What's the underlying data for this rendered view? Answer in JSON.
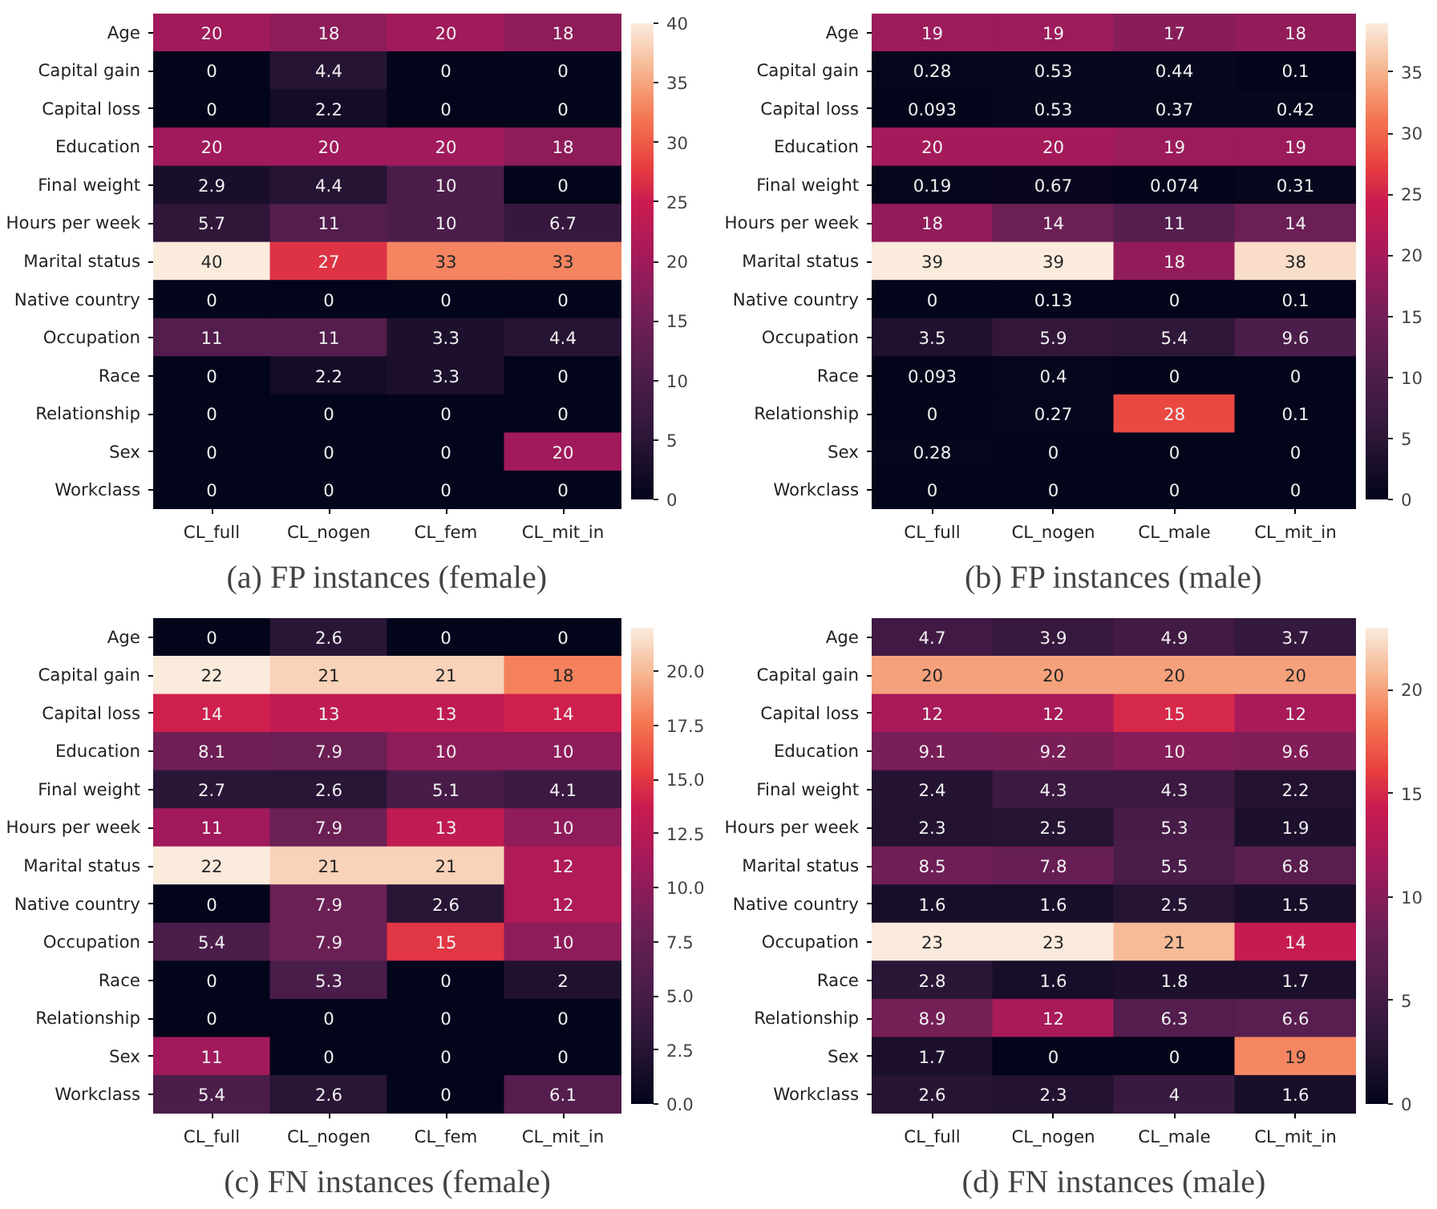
{
  "chart_data": [
    {
      "type": "heatmap",
      "title": "(a) FP instances (female)",
      "categories": [
        "CL_full",
        "CL_nogen",
        "CL_fem",
        "CL_mit_in"
      ],
      "y_categories": [
        "Age",
        "Capital gain",
        "Capital loss",
        "Education",
        "Final weight",
        "Hours per week",
        "Marital status",
        "Native country",
        "Occupation",
        "Race",
        "Relationship",
        "Sex",
        "Workclass"
      ],
      "clim": [
        0,
        40
      ],
      "cticks": [
        0,
        5,
        10,
        15,
        20,
        25,
        30,
        35,
        40
      ],
      "data_labels": true,
      "cells": [
        [
          20,
          18,
          20,
          18
        ],
        [
          0,
          4.4,
          0,
          0
        ],
        [
          0,
          2.2,
          0,
          0
        ],
        [
          20,
          20,
          20,
          18
        ],
        [
          2.9,
          4.4,
          10,
          0
        ],
        [
          5.7,
          11,
          10,
          6.7
        ],
        [
          40,
          27,
          33,
          33
        ],
        [
          0,
          0,
          0,
          0
        ],
        [
          11,
          11,
          3.3,
          4.4
        ],
        [
          0,
          2.2,
          3.3,
          0
        ],
        [
          0,
          0,
          0,
          0
        ],
        [
          0,
          0,
          0,
          20
        ],
        [
          0,
          0,
          0,
          0
        ]
      ]
    },
    {
      "type": "heatmap",
      "title": "(b) FP instances (male)",
      "categories": [
        "CL_full",
        "CL_nogen",
        "CL_male",
        "CL_mit_in"
      ],
      "y_categories": [
        "Age",
        "Capital gain",
        "Capital loss",
        "Education",
        "Final weight",
        "Hours per week",
        "Marital status",
        "Native country",
        "Occupation",
        "Race",
        "Relationship",
        "Sex",
        "Workclass"
      ],
      "clim": [
        0,
        39
      ],
      "cticks": [
        0,
        5,
        10,
        15,
        20,
        25,
        30,
        35
      ],
      "data_labels": true,
      "cells": [
        [
          19,
          19,
          17,
          18
        ],
        [
          0.28,
          0.53,
          0.44,
          0.1
        ],
        [
          0.093,
          0.53,
          0.37,
          0.42
        ],
        [
          20,
          20,
          19,
          19
        ],
        [
          0.19,
          0.67,
          0.074,
          0.31
        ],
        [
          18,
          14,
          11,
          14
        ],
        [
          39,
          39,
          18,
          38
        ],
        [
          0,
          0.13,
          0,
          0.1
        ],
        [
          3.5,
          5.9,
          5.4,
          9.6
        ],
        [
          0.093,
          0.4,
          0,
          0
        ],
        [
          0,
          0.27,
          28,
          0.1
        ],
        [
          0.28,
          0,
          0,
          0
        ],
        [
          0,
          0,
          0,
          0
        ]
      ]
    },
    {
      "type": "heatmap",
      "title": "(c) FN instances (female)",
      "categories": [
        "CL_full",
        "CL_nogen",
        "CL_fem",
        "CL_mit_in"
      ],
      "y_categories": [
        "Age",
        "Capital gain",
        "Capital loss",
        "Education",
        "Final weight",
        "Hours per week",
        "Marital status",
        "Native country",
        "Occupation",
        "Race",
        "Relationship",
        "Sex",
        "Workclass"
      ],
      "clim": [
        0,
        22
      ],
      "cticks": [
        {
          "value": 0,
          "label": "0.0"
        },
        {
          "value": 2.5,
          "label": "2.5"
        },
        {
          "value": 5,
          "label": "5.0"
        },
        {
          "value": 7.5,
          "label": "7.5"
        },
        {
          "value": 10,
          "label": "10.0"
        },
        {
          "value": 12.5,
          "label": "12.5"
        },
        {
          "value": 15,
          "label": "15.0"
        },
        {
          "value": 17.5,
          "label": "17.5"
        },
        {
          "value": 20,
          "label": "20.0"
        }
      ],
      "data_labels": true,
      "cells": [
        [
          0,
          2.6,
          0,
          0
        ],
        [
          22,
          21,
          21,
          18
        ],
        [
          14,
          13,
          13,
          14
        ],
        [
          8.1,
          7.9,
          10,
          10
        ],
        [
          2.7,
          2.6,
          5.1,
          4.1
        ],
        [
          11,
          7.9,
          13,
          10
        ],
        [
          22,
          21,
          21,
          12
        ],
        [
          0,
          7.9,
          2.6,
          12
        ],
        [
          5.4,
          7.9,
          15,
          10
        ],
        [
          0,
          5.3,
          0,
          2
        ],
        [
          0,
          0,
          0,
          0
        ],
        [
          11,
          0,
          0,
          0
        ],
        [
          5.4,
          2.6,
          0,
          6.1
        ]
      ]
    },
    {
      "type": "heatmap",
      "title": "(d) FN instances (male)",
      "categories": [
        "CL_full",
        "CL_nogen",
        "CL_male",
        "CL_mit_in"
      ],
      "y_categories": [
        "Age",
        "Capital gain",
        "Capital loss",
        "Education",
        "Final weight",
        "Hours per week",
        "Marital status",
        "Native country",
        "Occupation",
        "Race",
        "Relationship",
        "Sex",
        "Workclass"
      ],
      "clim": [
        0,
        23
      ],
      "cticks": [
        0,
        5,
        10,
        15,
        20
      ],
      "data_labels": true,
      "cells": [
        [
          4.7,
          3.9,
          4.9,
          3.7
        ],
        [
          20,
          20,
          20,
          20
        ],
        [
          12,
          12,
          15,
          12
        ],
        [
          9.1,
          9.2,
          10,
          9.6
        ],
        [
          2.4,
          4.3,
          4.3,
          2.2
        ],
        [
          2.3,
          2.5,
          5.3,
          1.9
        ],
        [
          8.5,
          7.8,
          5.5,
          6.8
        ],
        [
          1.6,
          1.6,
          2.5,
          1.5
        ],
        [
          23,
          23,
          21,
          14
        ],
        [
          2.8,
          1.6,
          1.8,
          1.7
        ],
        [
          8.9,
          12,
          6.3,
          6.6
        ],
        [
          1.7,
          0,
          0,
          19
        ],
        [
          2.6,
          2.3,
          4,
          1.6
        ]
      ]
    }
  ]
}
